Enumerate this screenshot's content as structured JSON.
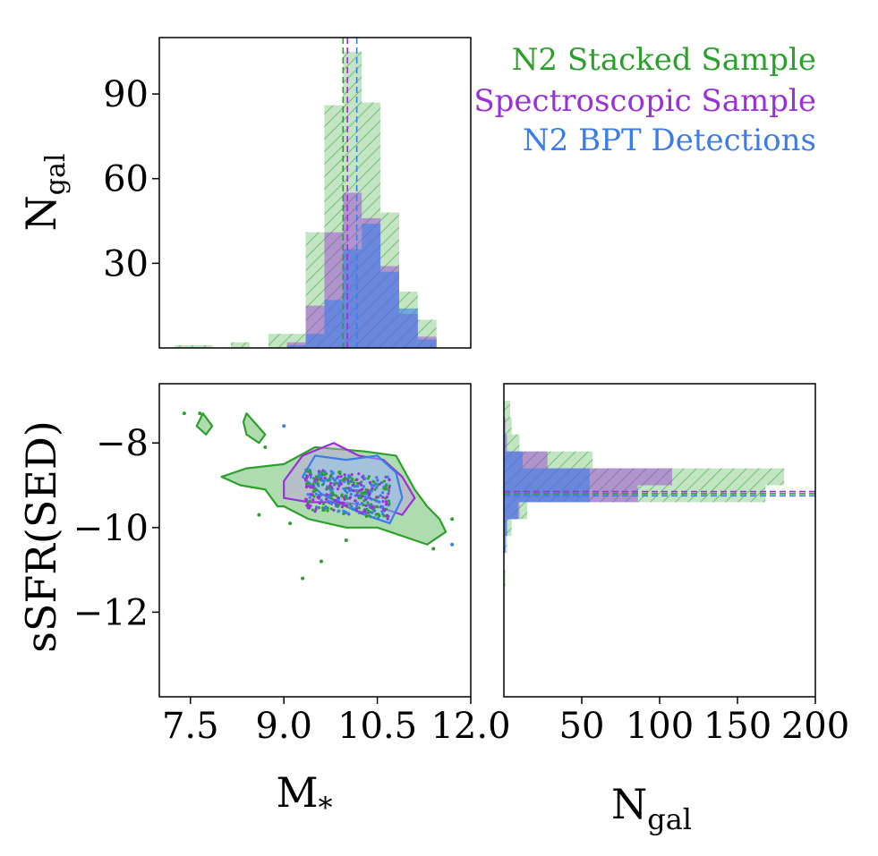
{
  "chart_data": [
    {
      "panel": "top-histogram",
      "type": "bar",
      "ylabel": "N",
      "ylabel_sub": "gal",
      "xlim": [
        7.0,
        12.0
      ],
      "ylim": [
        0,
        110
      ],
      "yticks": [
        {
          "value": 30,
          "label": "30"
        },
        {
          "value": 60,
          "label": "60"
        },
        {
          "value": 90,
          "label": "90"
        }
      ],
      "bin_edges": [
        7.25,
        7.55,
        7.85,
        8.15,
        8.45,
        8.75,
        9.05,
        9.35,
        9.65,
        9.95,
        10.25,
        10.55,
        10.85,
        11.15,
        11.45
      ],
      "series": [
        {
          "name": "N2 Stacked Sample",
          "color": "#2ca02c",
          "values": [
            1,
            1,
            0,
            2,
            0,
            5,
            5,
            41,
            86,
            105,
            87,
            48,
            20,
            10,
            1
          ]
        },
        {
          "name": "Spectroscopic Sample",
          "color": "#9b30d9",
          "values": [
            0,
            0,
            0,
            0,
            0,
            0,
            2,
            15,
            41,
            55,
            46,
            29,
            12,
            4,
            1
          ]
        },
        {
          "name": "N2 BPT Detections",
          "color": "#3a7de8",
          "values": [
            0,
            0,
            0,
            0,
            0,
            0,
            1,
            5,
            17,
            35,
            44,
            27,
            14,
            3,
            1
          ]
        }
      ],
      "medians": [
        {
          "series": "N2 Stacked Sample",
          "value": 9.95
        },
        {
          "series": "Spectroscopic Sample",
          "value": 10.02
        },
        {
          "series": "N2 BPT Detections",
          "value": 10.17
        }
      ],
      "legend": {
        "placement": "top-right",
        "entries": [
          {
            "label": "N2 Stacked Sample",
            "color": "#2ca02c"
          },
          {
            "label": "Spectroscopic Sample",
            "color": "#9b30d9"
          },
          {
            "label": "N2 BPT Detections",
            "color": "#3a7de8"
          }
        ]
      }
    },
    {
      "panel": "scatter",
      "type": "scatter",
      "xlabel": "M",
      "xlabel_sub": "*",
      "ylabel": "sSFR(SED)",
      "xlim": [
        7.0,
        12.0
      ],
      "ylim": [
        -14.0,
        -6.6
      ],
      "xticks": [
        {
          "value": 7.5,
          "label": "7.5"
        },
        {
          "value": 9.0,
          "label": "9.0"
        },
        {
          "value": 10.5,
          "label": "10.5"
        },
        {
          "value": 12.0,
          "label": "12.0"
        }
      ],
      "yticks": [
        {
          "value": -8,
          "label": "−8"
        },
        {
          "value": -10,
          "label": "−10"
        },
        {
          "value": -12,
          "label": "−12"
        }
      ],
      "contours": [
        {
          "series": "N2 Stacked Sample",
          "color": "#2ca02c",
          "points": [
            [
              8.0,
              -8.8
            ],
            [
              8.4,
              -8.6
            ],
            [
              9.0,
              -8.5
            ],
            [
              9.5,
              -8.1
            ],
            [
              10.3,
              -8.2
            ],
            [
              10.8,
              -8.3
            ],
            [
              11.1,
              -9.1
            ],
            [
              11.3,
              -9.5
            ],
            [
              11.5,
              -9.8
            ],
            [
              11.6,
              -10.1
            ],
            [
              11.3,
              -10.4
            ],
            [
              10.9,
              -10.2
            ],
            [
              10.5,
              -10.0
            ],
            [
              10.0,
              -10.0
            ],
            [
              9.4,
              -9.8
            ],
            [
              9.0,
              -9.5
            ],
            [
              8.9,
              -9.5
            ],
            [
              8.7,
              -9.1
            ],
            [
              8.3,
              -9.0
            ],
            [
              8.0,
              -8.8
            ]
          ]
        },
        {
          "series": "N2 Stacked Sample",
          "color": "#2ca02c",
          "points": [
            [
              7.7,
              -7.3
            ],
            [
              7.85,
              -7.6
            ],
            [
              7.75,
              -7.8
            ],
            [
              7.6,
              -7.6
            ],
            [
              7.7,
              -7.3
            ]
          ]
        },
        {
          "series": "N2 Stacked Sample",
          "color": "#2ca02c",
          "points": [
            [
              8.4,
              -7.3
            ],
            [
              8.7,
              -7.8
            ],
            [
              8.6,
              -8.0
            ],
            [
              8.4,
              -7.8
            ],
            [
              8.35,
              -7.5
            ],
            [
              8.4,
              -7.3
            ]
          ]
        },
        {
          "series": "Spectroscopic Sample",
          "color": "#9b30d9",
          "points": [
            [
              9.0,
              -8.9
            ],
            [
              9.3,
              -8.3
            ],
            [
              9.8,
              -8.0
            ],
            [
              10.2,
              -8.3
            ],
            [
              10.6,
              -8.4
            ],
            [
              10.9,
              -8.8
            ],
            [
              11.1,
              -9.3
            ],
            [
              10.9,
              -9.7
            ],
            [
              10.5,
              -9.5
            ],
            [
              9.9,
              -9.4
            ],
            [
              9.4,
              -9.4
            ],
            [
              9.0,
              -9.3
            ],
            [
              9.0,
              -8.9
            ]
          ]
        },
        {
          "series": "N2 BPT Detections",
          "color": "#3a7de8",
          "points": [
            [
              9.5,
              -8.3
            ],
            [
              10.0,
              -8.4
            ],
            [
              10.5,
              -8.3
            ],
            [
              10.8,
              -8.7
            ],
            [
              10.9,
              -9.3
            ],
            [
              10.7,
              -9.9
            ],
            [
              10.3,
              -9.7
            ],
            [
              10.0,
              -9.5
            ],
            [
              9.6,
              -9.2
            ],
            [
              9.3,
              -8.8
            ],
            [
              9.5,
              -8.3
            ]
          ]
        }
      ],
      "outliers": [
        {
          "series": "N2 Stacked Sample",
          "x": 7.4,
          "y": -7.3
        },
        {
          "series": "N2 Stacked Sample",
          "x": 7.65,
          "y": -7.3
        },
        {
          "series": "N2 Stacked Sample",
          "x": 8.7,
          "y": -8.1
        },
        {
          "series": "N2 BPT Detections",
          "x": 9.0,
          "y": -7.6
        },
        {
          "series": "N2 Stacked Sample",
          "x": 8.6,
          "y": -9.7
        },
        {
          "series": "N2 Stacked Sample",
          "x": 9.1,
          "y": -9.9
        },
        {
          "series": "N2 Stacked Sample",
          "x": 9.6,
          "y": -10.8
        },
        {
          "series": "N2 Stacked Sample",
          "x": 9.3,
          "y": -11.2
        },
        {
          "series": "N2 Stacked Sample",
          "x": 11.4,
          "y": -10.5
        },
        {
          "series": "N2 BPT Detections",
          "x": 11.7,
          "y": -10.4
        },
        {
          "series": "N2 Stacked Sample",
          "x": 11.7,
          "y": -9.8
        },
        {
          "series": "N2 Stacked Sample",
          "x": 10.0,
          "y": -10.3
        }
      ]
    },
    {
      "panel": "right-histogram",
      "type": "bar",
      "orientation": "horizontal",
      "xlabel": "N",
      "xlabel_sub": "gal",
      "xlim": [
        0,
        200
      ],
      "ylim": [
        -14.0,
        -6.6
      ],
      "xticks": [
        {
          "value": 50,
          "label": "50"
        },
        {
          "value": 100,
          "label": "100"
        },
        {
          "value": 150,
          "label": "150"
        },
        {
          "value": 200,
          "label": "200"
        }
      ],
      "bin_edges": [
        -11.4,
        -11.0,
        -10.6,
        -10.2,
        -9.8,
        -9.4,
        -9.0,
        -8.6,
        -8.2,
        -7.8,
        -7.4,
        -7.0
      ],
      "series": [
        {
          "name": "N2 Stacked Sample",
          "color": "#2ca02c",
          "values": [
            1,
            0,
            2,
            5,
            15,
            168,
            180,
            57,
            10,
            5,
            4
          ]
        },
        {
          "name": "Spectroscopic Sample",
          "color": "#9b30d9",
          "values": [
            0,
            0,
            1,
            2,
            10,
            86,
            108,
            28,
            2,
            1,
            0
          ]
        },
        {
          "name": "N2 BPT Detections",
          "color": "#3a7de8",
          "values": [
            0,
            0,
            1,
            2,
            9,
            55,
            55,
            12,
            1,
            0,
            0
          ]
        }
      ],
      "medians": [
        {
          "series": "N2 Stacked Sample",
          "value": -9.2
        },
        {
          "series": "Spectroscopic Sample",
          "value": -9.15
        },
        {
          "series": "N2 BPT Detections",
          "value": -9.25
        }
      ]
    }
  ]
}
